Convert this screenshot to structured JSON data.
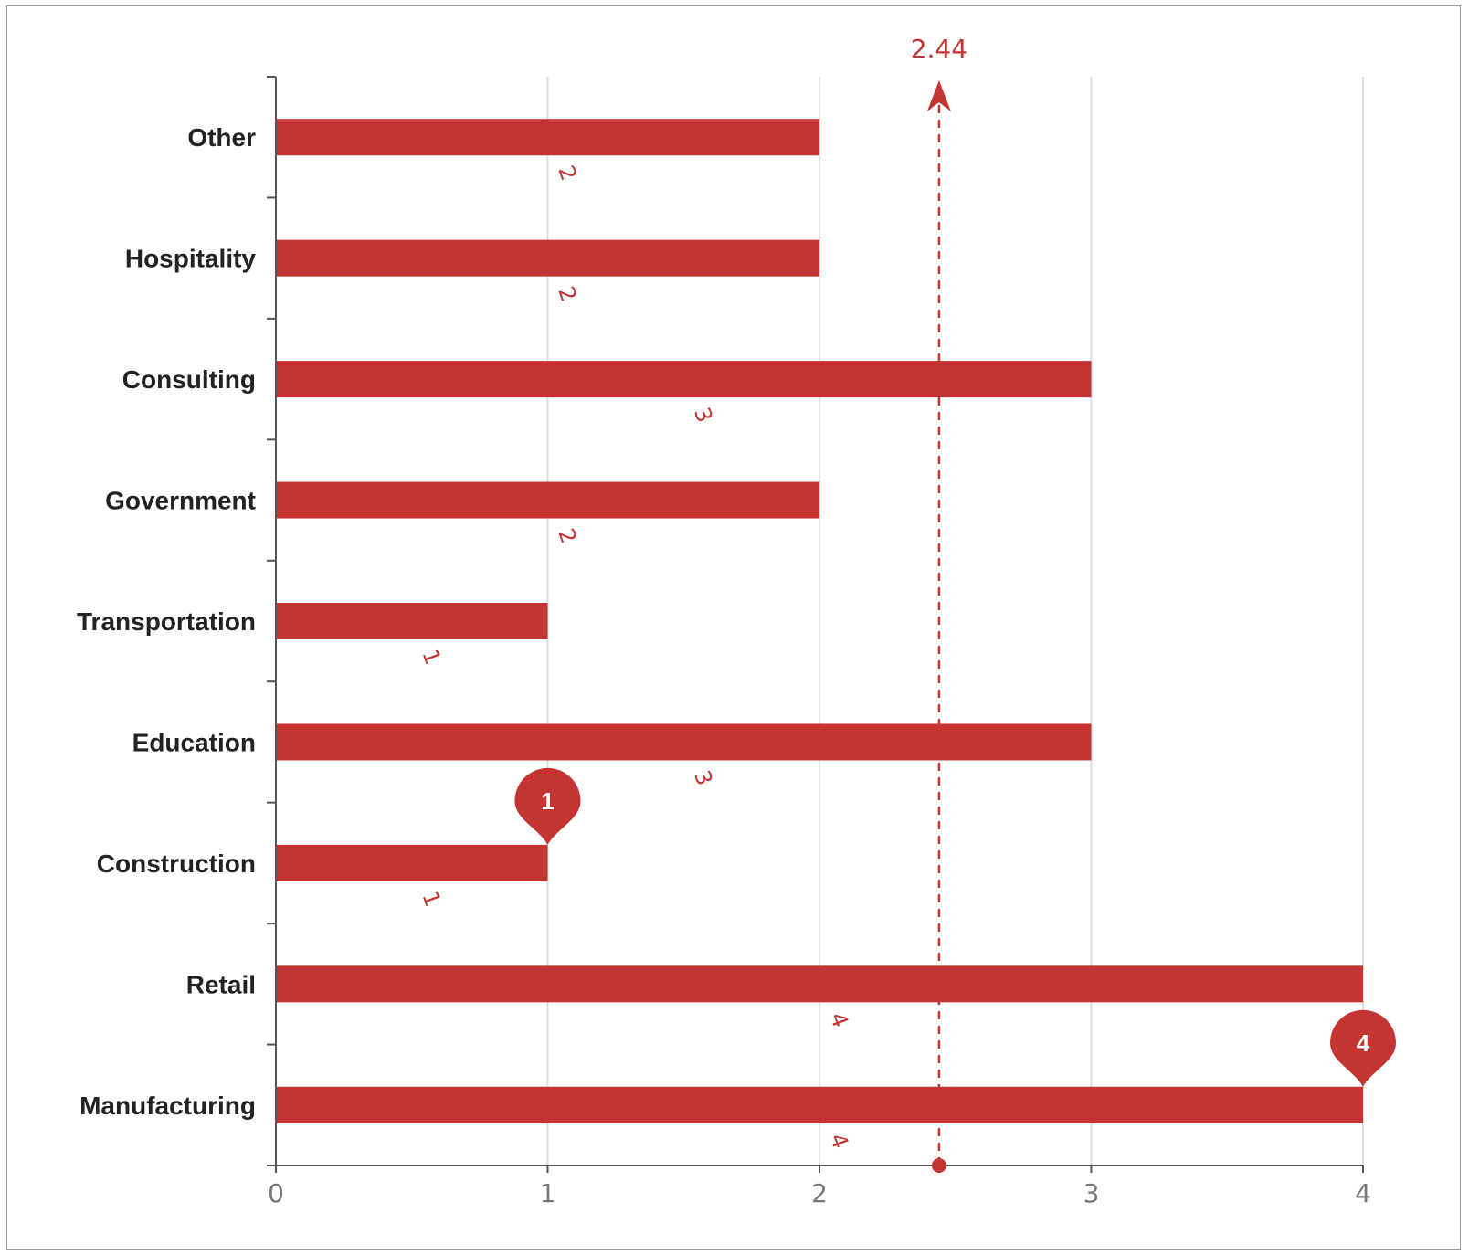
{
  "chart_data": {
    "type": "bar",
    "orientation": "horizontal",
    "title": "",
    "xlabel": "",
    "ylabel": "",
    "categories": [
      "Manufacturing",
      "Retail",
      "Construction",
      "Education",
      "Transportation",
      "Government",
      "Consulting",
      "Hospitality",
      "Other"
    ],
    "values": [
      4,
      4,
      1,
      3,
      1,
      2,
      3,
      2,
      2
    ],
    "xlim": [
      0,
      4
    ],
    "xticks": [
      "0",
      "1",
      "2",
      "3",
      "4"
    ],
    "grid": "vertical",
    "bar_color": "#c33432",
    "data_labels": [
      "4",
      "4",
      "1",
      "3",
      "1",
      "2",
      "3",
      "2",
      "2"
    ],
    "mark_points": [
      {
        "type": "max",
        "category": "Manufacturing",
        "value": 4,
        "label": "4"
      },
      {
        "type": "min",
        "category": "Construction",
        "value": 1,
        "label": "1"
      }
    ],
    "mark_line": {
      "type": "average",
      "value": 2.44,
      "label": "2.44"
    }
  }
}
